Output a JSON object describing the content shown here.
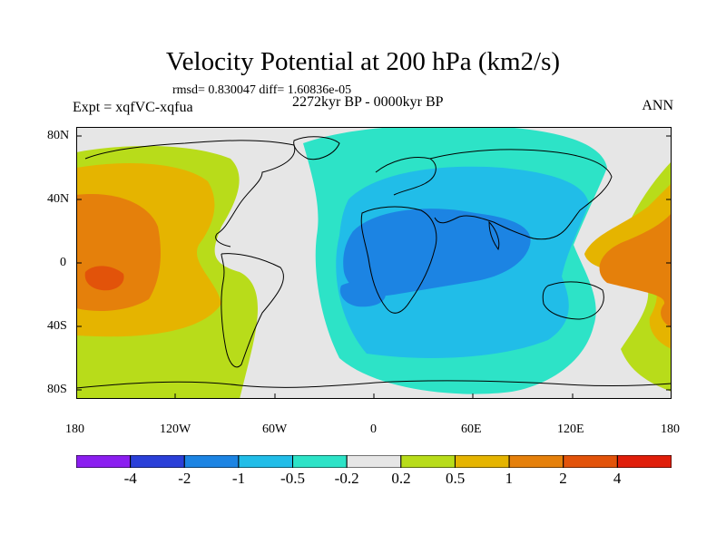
{
  "title": "Velocity Potential at 200 hPa (km2/s)",
  "stats": "rmsd= 0.830047 diff= 1.60836e-05",
  "experiment": "Expt = xqfVC-xqfua",
  "period": "2272kyr BP - 0000kyr BP",
  "season": "ANN",
  "lat_labels": [
    "80N",
    "40N",
    "0",
    "40S",
    "80S"
  ],
  "lon_labels": [
    "180",
    "120W",
    "60W",
    "0",
    "60E",
    "120E",
    "180"
  ],
  "colorbar": {
    "colors": [
      "#8b1ef0",
      "#2a3fd8",
      "#1c84e3",
      "#21bde8",
      "#2de3c7",
      "#e6e6e6",
      "#b8dc1a",
      "#e5b400",
      "#e5800b",
      "#e2530a",
      "#e01e0a"
    ],
    "labels": [
      "-4",
      "-2",
      "-1",
      "-0.5",
      "-0.2",
      "0.2",
      "0.5",
      "1",
      "2",
      "4"
    ]
  },
  "map_colors": {
    "background": "#e6e6e6",
    "coast": "#000000"
  }
}
